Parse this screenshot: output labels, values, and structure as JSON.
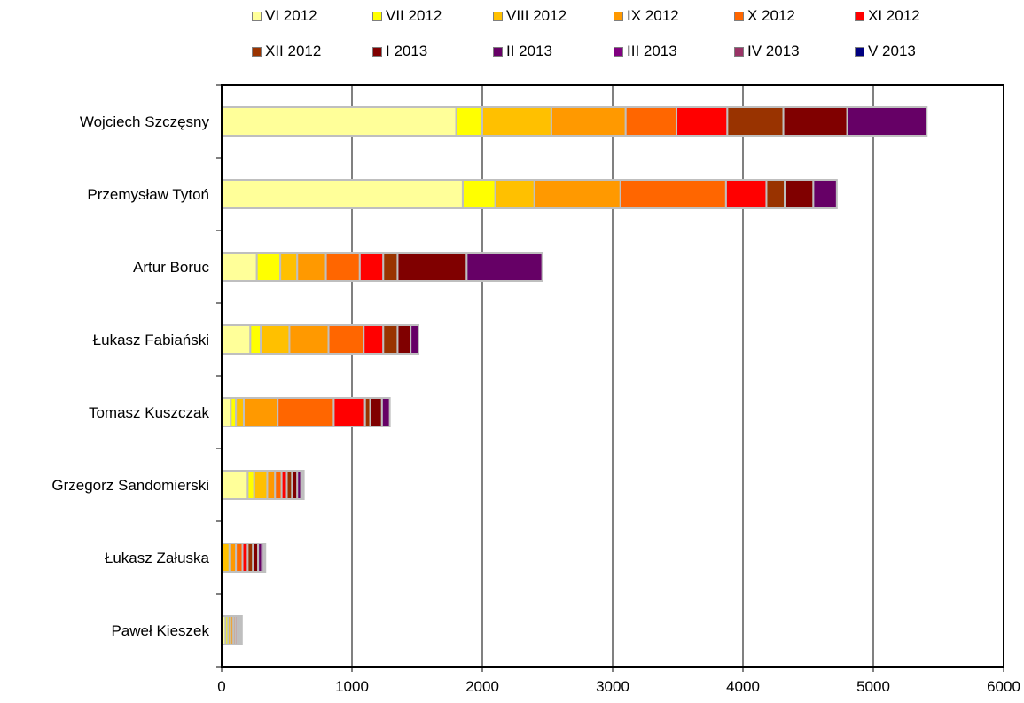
{
  "chart_data": {
    "type": "bar",
    "orientation": "horizontal",
    "stacked": true,
    "title": "",
    "xlabel": "",
    "ylabel": "",
    "xlim": [
      0,
      6000
    ],
    "x_ticks": [
      "0",
      "1000",
      "2000",
      "3000",
      "4000",
      "5000",
      "6000"
    ],
    "grid": "vertical major gridlines",
    "legend_position": "top",
    "categories": [
      "Wojciech Szczęsny",
      "Przemysław Tytoń",
      "Artur Boruc",
      "Łukasz Fabiański",
      "Tomasz Kuszczak",
      "Grzegorz Sandomierski",
      "Łukasz Załuska",
      "Paweł Kieszek"
    ],
    "series": [
      {
        "name": "VI 2012",
        "color": "#ffff99",
        "values": [
          1800,
          1850,
          270,
          220,
          70,
          200,
          0,
          30
        ]
      },
      {
        "name": "VII 2012",
        "color": "#ffff00",
        "values": [
          200,
          250,
          180,
          80,
          40,
          50,
          0,
          20
        ]
      },
      {
        "name": "VIII 2012",
        "color": "#ffc000",
        "values": [
          530,
          300,
          130,
          220,
          60,
          100,
          60,
          20
        ]
      },
      {
        "name": "IX 2012",
        "color": "#ff9900",
        "values": [
          570,
          660,
          220,
          300,
          260,
          60,
          50,
          20
        ]
      },
      {
        "name": "X 2012",
        "color": "#ff6600",
        "values": [
          390,
          810,
          260,
          270,
          430,
          50,
          50,
          15
        ]
      },
      {
        "name": "XI 2012",
        "color": "#ff0000",
        "values": [
          390,
          310,
          180,
          150,
          240,
          40,
          40,
          15
        ]
      },
      {
        "name": "XII 2012",
        "color": "#993300",
        "values": [
          430,
          140,
          110,
          110,
          40,
          40,
          40,
          10
        ]
      },
      {
        "name": "I 2013",
        "color": "#800000",
        "values": [
          490,
          220,
          530,
          100,
          90,
          40,
          40,
          10
        ]
      },
      {
        "name": "II 2013",
        "color": "#660066",
        "values": [
          610,
          180,
          580,
          60,
          60,
          30,
          30,
          5
        ]
      },
      {
        "name": "III 2013",
        "color": "#800080",
        "values": [
          0,
          0,
          0,
          0,
          0,
          10,
          15,
          5
        ]
      },
      {
        "name": "IV 2013",
        "color": "#993366",
        "values": [
          0,
          0,
          0,
          0,
          0,
          10,
          10,
          5
        ]
      },
      {
        "name": "V 2013",
        "color": "#000080",
        "values": [
          0,
          0,
          0,
          0,
          0,
          0,
          0,
          0
        ]
      }
    ]
  }
}
